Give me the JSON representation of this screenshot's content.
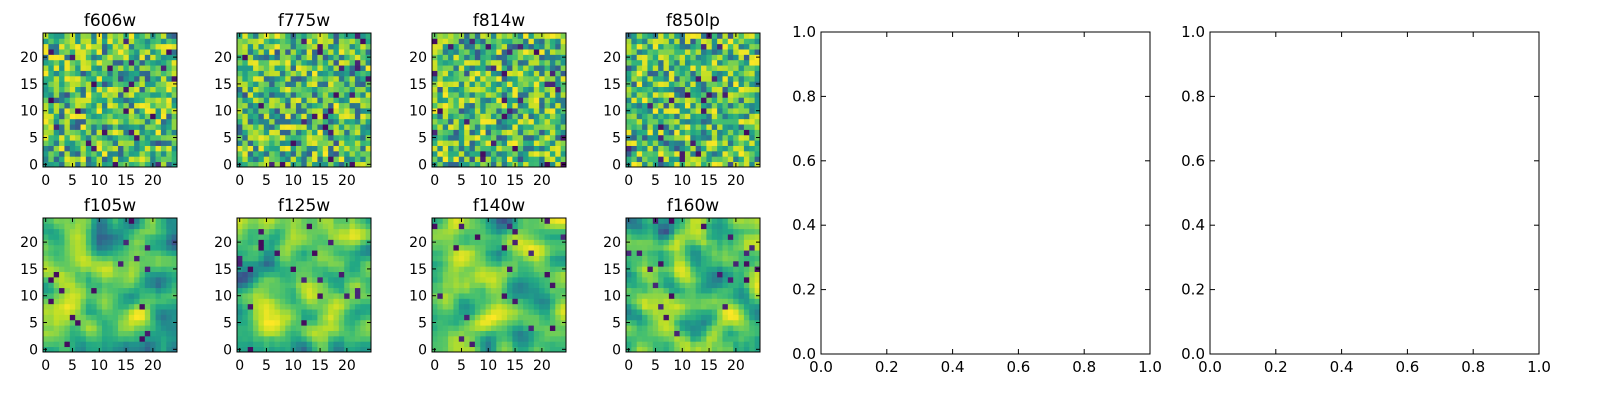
{
  "chart_data": [
    {
      "type": "heatmap",
      "title": "f606w",
      "xticks": [
        "0",
        "5",
        "10",
        "15",
        "20"
      ],
      "yticks": [
        "0",
        "5",
        "10",
        "15",
        "20"
      ],
      "xlim": [
        -0.5,
        24.5
      ],
      "ylim": [
        -0.5,
        24.5
      ],
      "grid_size": 25,
      "smoothness": 0,
      "seed": 11
    },
    {
      "type": "heatmap",
      "title": "f775w",
      "xticks": [
        "0",
        "5",
        "10",
        "15",
        "20"
      ],
      "yticks": [
        "0",
        "5",
        "10",
        "15",
        "20"
      ],
      "xlim": [
        -0.5,
        24.5
      ],
      "ylim": [
        -0.5,
        24.5
      ],
      "grid_size": 25,
      "smoothness": 0,
      "seed": 23
    },
    {
      "type": "heatmap",
      "title": "f814w",
      "xticks": [
        "0",
        "5",
        "10",
        "15",
        "20"
      ],
      "yticks": [
        "0",
        "5",
        "10",
        "15",
        "20"
      ],
      "xlim": [
        -0.5,
        24.5
      ],
      "ylim": [
        -0.5,
        24.5
      ],
      "grid_size": 25,
      "smoothness": 0,
      "seed": 37
    },
    {
      "type": "heatmap",
      "title": "f850lp",
      "xticks": [
        "0",
        "5",
        "10",
        "15",
        "20"
      ],
      "yticks": [
        "0",
        "5",
        "10",
        "15",
        "20"
      ],
      "xlim": [
        -0.5,
        24.5
      ],
      "ylim": [
        -0.5,
        24.5
      ],
      "grid_size": 25,
      "smoothness": 0,
      "seed": 41
    },
    {
      "type": "heatmap",
      "title": "f105w",
      "xticks": [
        "0",
        "5",
        "10",
        "15",
        "20"
      ],
      "yticks": [
        "0",
        "5",
        "10",
        "15",
        "20"
      ],
      "xlim": [
        -0.5,
        24.5
      ],
      "ylim": [
        -0.5,
        24.5
      ],
      "grid_size": 25,
      "smoothness": 2,
      "seed": 53
    },
    {
      "type": "heatmap",
      "title": "f125w",
      "xticks": [
        "0",
        "5",
        "10",
        "15",
        "20"
      ],
      "yticks": [
        "0",
        "5",
        "10",
        "15",
        "20"
      ],
      "xlim": [
        -0.5,
        24.5
      ],
      "ylim": [
        -0.5,
        24.5
      ],
      "grid_size": 25,
      "smoothness": 2,
      "seed": 67
    },
    {
      "type": "heatmap",
      "title": "f140w",
      "xticks": [
        "0",
        "5",
        "10",
        "15",
        "20"
      ],
      "yticks": [
        "0",
        "5",
        "10",
        "15",
        "20"
      ],
      "xlim": [
        -0.5,
        24.5
      ],
      "ylim": [
        -0.5,
        24.5
      ],
      "grid_size": 25,
      "smoothness": 2,
      "seed": 71
    },
    {
      "type": "heatmap",
      "title": "f160w",
      "xticks": [
        "0",
        "5",
        "10",
        "15",
        "20"
      ],
      "yticks": [
        "0",
        "5",
        "10",
        "15",
        "20"
      ],
      "xlim": [
        -0.5,
        24.5
      ],
      "ylim": [
        -0.5,
        24.5
      ],
      "grid_size": 25,
      "smoothness": 2,
      "seed": 89
    },
    {
      "type": "empty",
      "title": "",
      "xlim": [
        0,
        1
      ],
      "ylim": [
        0,
        1
      ],
      "xticks": [
        "0.0",
        "0.2",
        "0.4",
        "0.6",
        "0.8",
        "1.0"
      ],
      "yticks": [
        "0.0",
        "0.2",
        "0.4",
        "0.6",
        "0.8",
        "1.0"
      ]
    },
    {
      "type": "empty",
      "title": "",
      "xlim": [
        0,
        1
      ],
      "ylim": [
        0,
        1
      ],
      "xticks": [
        "0.0",
        "0.2",
        "0.4",
        "0.6",
        "0.8",
        "1.0"
      ],
      "yticks": [
        "0.0",
        "0.2",
        "0.4",
        "0.6",
        "0.8",
        "1.0"
      ]
    }
  ],
  "colormap": "viridis"
}
